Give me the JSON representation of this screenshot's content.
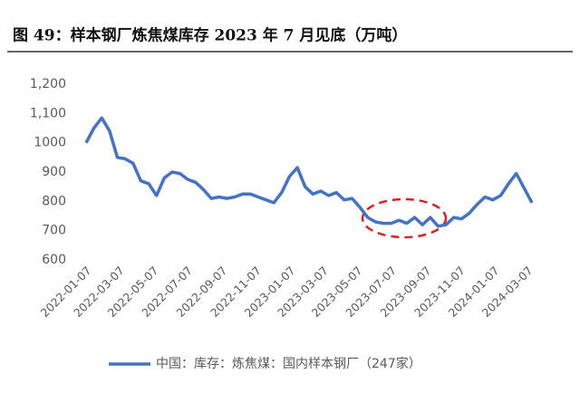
{
  "chart_data": {
    "type": "line",
    "title": "图 49：样本钢厂炼焦煤库存 2023 年 7 月见底（万吨）",
    "x": [
      "2022-01-07",
      "2022-01-21",
      "2022-02-04",
      "2022-02-18",
      "2022-03-04",
      "2022-03-18",
      "2022-04-01",
      "2022-04-15",
      "2022-04-29",
      "2022-05-13",
      "2022-05-27",
      "2022-06-10",
      "2022-06-24",
      "2022-07-08",
      "2022-07-22",
      "2022-08-05",
      "2022-08-19",
      "2022-09-02",
      "2022-09-16",
      "2022-09-30",
      "2022-10-14",
      "2022-10-28",
      "2022-11-11",
      "2022-11-25",
      "2022-12-09",
      "2022-12-23",
      "2023-01-06",
      "2023-01-20",
      "2023-02-03",
      "2023-02-17",
      "2023-03-03",
      "2023-03-17",
      "2023-03-31",
      "2023-04-14",
      "2023-04-28",
      "2023-05-12",
      "2023-05-26",
      "2023-06-09",
      "2023-06-23",
      "2023-07-07",
      "2023-07-21",
      "2023-08-04",
      "2023-08-18",
      "2023-09-01",
      "2023-09-15",
      "2023-09-29",
      "2023-10-13",
      "2023-10-27",
      "2023-11-10",
      "2023-11-24",
      "2023-12-08",
      "2023-12-22",
      "2024-01-05",
      "2024-01-19",
      "2024-02-02",
      "2024-02-16",
      "2024-03-01",
      "2024-03-15"
    ],
    "series": [
      {
        "name": "中国：库存：炼焦煤：国内样本钢厂（247家）",
        "color": "#4472c4",
        "values": [
          1000,
          1050,
          1085,
          1040,
          950,
          945,
          930,
          870,
          860,
          820,
          880,
          900,
          895,
          875,
          865,
          840,
          810,
          815,
          810,
          815,
          825,
          825,
          815,
          805,
          795,
          830,
          885,
          915,
          850,
          825,
          835,
          820,
          830,
          805,
          810,
          780,
          745,
          730,
          725,
          725,
          735,
          725,
          745,
          720,
          745,
          715,
          720,
          745,
          740,
          760,
          790,
          815,
          805,
          820,
          860,
          895,
          845,
          795
        ]
      }
    ],
    "xlim": [
      "2022-01-07",
      "2024-03-15"
    ],
    "xticks": [
      "2022-01-07",
      "2022-03-07",
      "2022-05-07",
      "2022-07-07",
      "2022-09-07",
      "2022-11-07",
      "2023-01-07",
      "2023-03-07",
      "2023-05-07",
      "2023-07-07",
      "2023-09-07",
      "2023-11-07",
      "2024-01-07",
      "2024-03-07"
    ],
    "ylim": [
      600,
      1200
    ],
    "yticks": [
      600,
      700,
      800,
      900,
      1000,
      {
        "value": 1100,
        "label": "1,100"
      },
      {
        "value": 1200,
        "label": "1,200"
      }
    ],
    "legend": "bottom"
  }
}
